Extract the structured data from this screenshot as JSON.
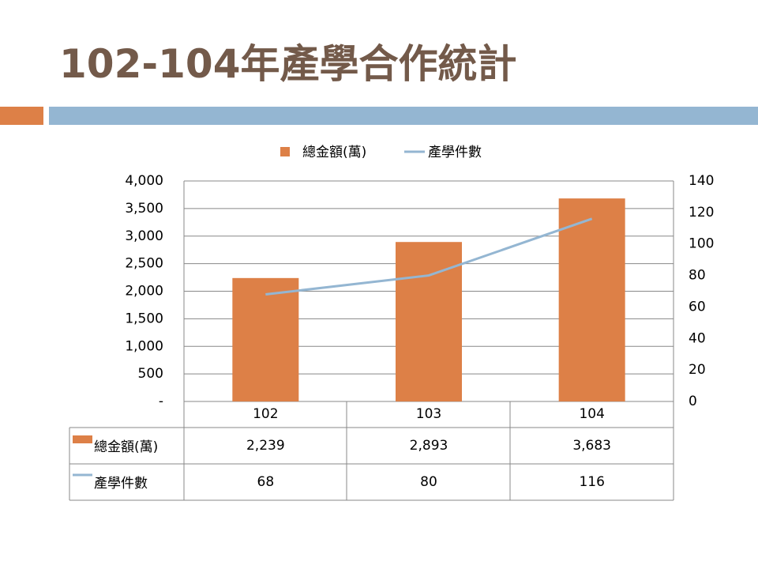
{
  "chart_data": {
    "type": "combo",
    "title": "102-104年產學合作統計",
    "categories": [
      "102",
      "103",
      "104"
    ],
    "series": [
      {
        "name": "總金額(萬)",
        "type": "bar",
        "color": "#dd8047",
        "values": [
          2239,
          2893,
          3683
        ],
        "value_labels": [
          "2,239",
          "2,893",
          "3,683"
        ]
      },
      {
        "name": "產學件數",
        "type": "line",
        "axis": "y2",
        "color": "#94b6d2",
        "values": [
          68,
          80,
          116
        ]
      }
    ],
    "ylim": [
      0,
      4000
    ],
    "yticks": [
      {
        "value": 0,
        "label": "-"
      },
      500,
      {
        "value": 1000,
        "label": "1,000"
      },
      {
        "value": 1500,
        "label": "1,500"
      },
      {
        "value": 2000,
        "label": "2,000"
      },
      {
        "value": 2500,
        "label": "2,500"
      },
      {
        "value": 3000,
        "label": "3,000"
      },
      {
        "value": 3500,
        "label": "3,500"
      },
      {
        "value": 4000,
        "label": "4,000"
      }
    ],
    "y2lim": [
      0,
      140
    ],
    "y2ticks": [
      0,
      20,
      40,
      60,
      80,
      100,
      120,
      140
    ],
    "grid": true,
    "legend": "top",
    "data_table": true
  }
}
